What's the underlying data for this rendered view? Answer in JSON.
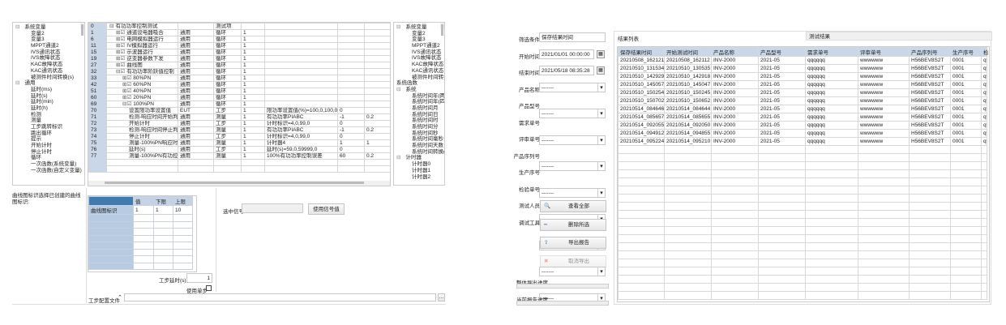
{
  "left_tree": {
    "items": [
      {
        "t": "系统变量",
        "l": 0,
        "exp": true
      },
      {
        "t": "变量2",
        "l": 1
      },
      {
        "t": "变量3",
        "l": 1
      },
      {
        "t": "MPPT通道2",
        "l": 1
      },
      {
        "t": "IVS通讯状态",
        "l": 1
      },
      {
        "t": "IVS故障状态",
        "l": 1
      },
      {
        "t": "KAC故障状态",
        "l": 1
      },
      {
        "t": "KAC通讯状态",
        "l": 1
      },
      {
        "t": "被测件时间转换(s)",
        "l": 1
      },
      {
        "t": "通用",
        "l": 0,
        "exp": true
      },
      {
        "t": "延时(ms)",
        "l": 1
      },
      {
        "t": "延时(s)",
        "l": 1
      },
      {
        "t": "延时(min)",
        "l": 1
      },
      {
        "t": "延时(h)",
        "l": 1
      },
      {
        "t": "检测",
        "l": 1
      },
      {
        "t": "测量",
        "l": 1
      },
      {
        "t": "工步跳转标识",
        "l": 1
      },
      {
        "t": "跳出循环",
        "l": 1
      },
      {
        "t": "提示",
        "l": 1
      },
      {
        "t": "开始计时",
        "l": 1
      },
      {
        "t": "停止计时",
        "l": 1
      },
      {
        "t": "循环",
        "l": 1
      },
      {
        "t": "一次函数(系统变量)",
        "l": 1
      },
      {
        "t": "一次函数(自定义变量)",
        "l": 1
      }
    ]
  },
  "main_table": {
    "rows": [
      [
        "0",
        "⊟",
        "有功功率控制测试",
        "",
        "测试项",
        "",
        "",
        "",
        "",
        0
      ],
      [
        "1",
        "⊞☑",
        "通道设电器吸合",
        "通用",
        "循环",
        "1",
        "",
        "",
        "",
        1
      ],
      [
        "6",
        "⊞☑",
        "电网模拟器运行",
        "通用",
        "循环",
        "1",
        "",
        "",
        "",
        1
      ],
      [
        "11",
        "⊞☑",
        "IV模拟器运行",
        "通用",
        "循环",
        "1",
        "",
        "",
        "",
        1
      ],
      [
        "15",
        "⊞☑",
        "示波器运行",
        "通用",
        "循环",
        "1",
        "",
        "",
        "",
        1
      ],
      [
        "19",
        "⊞☑",
        "逆变器参数下发",
        "通用",
        "循环",
        "1",
        "",
        "",
        "",
        1
      ],
      [
        "27",
        "⊞☑",
        "曲线图",
        "通用",
        "循环",
        "1",
        "",
        "",
        "",
        1
      ],
      [
        "32",
        "⊟☑",
        "有功功率阶跃值控制",
        "通用",
        "循环",
        "1",
        "",
        "",
        "",
        1
      ],
      [
        "33",
        "⊞☑",
        "80%PN",
        "通用",
        "循环",
        "1",
        "",
        "",
        "",
        2
      ],
      [
        "42",
        "⊞☑",
        "60%PN",
        "通用",
        "循环",
        "1",
        "",
        "",
        "",
        2
      ],
      [
        "51",
        "⊞☑",
        "40%PN",
        "通用",
        "循环",
        "1",
        "",
        "",
        "",
        2
      ],
      [
        "60",
        "⊞☑",
        "20%PN",
        "通用",
        "循环",
        "1",
        "",
        "",
        "",
        2
      ],
      [
        "69",
        "⊟☑",
        "100%PN",
        "通用",
        "循环",
        "1",
        "",
        "",
        "",
        2
      ],
      [
        "70",
        "",
        "设置限功率设置值",
        "EUT",
        "工步",
        "1",
        "限功率设置值(%)=100,0,100,0",
        "0",
        "",
        3
      ],
      [
        "71",
        "",
        "检测-响应时间开始判",
        "通用",
        "测量",
        "1",
        "有功功率PIABC",
        "-1",
        "0.2",
        3
      ],
      [
        "72",
        "",
        "开始计时",
        "通用",
        "工步",
        "1",
        "计时标识=4,0,99,0",
        "0",
        "",
        3
      ],
      [
        "73",
        "",
        "检测-响应时间停止判",
        "通用",
        "测量",
        "1",
        "有功功率PIABC",
        "-1",
        "0.2",
        3
      ],
      [
        "74",
        "",
        "停止计时",
        "通用",
        "工步",
        "1",
        "计时标识=4,0,99,0",
        "0",
        "",
        3
      ],
      [
        "75",
        "",
        "测量-100%PN响应时",
        "通用",
        "测量",
        "1",
        "计时器4",
        "1",
        "1",
        3
      ],
      [
        "76",
        "",
        "延时(s)",
        "通用",
        "工步",
        "1",
        "延时(s)=59,0,59999,0",
        "0",
        "",
        3
      ],
      [
        "77",
        "",
        "测量-100%PN有功控",
        "通用",
        "测量",
        "1",
        "100%有功功率控制误差",
        "60",
        "0.2",
        3
      ]
    ]
  },
  "right_tree": {
    "items": [
      {
        "t": "系统变量",
        "l": 0,
        "exp": true
      },
      {
        "t": "变量2",
        "l": 1
      },
      {
        "t": "变量3",
        "l": 1
      },
      {
        "t": "MPPT通道2",
        "l": 1
      },
      {
        "t": "IVS通讯状态",
        "l": 1
      },
      {
        "t": "IVS故障状态",
        "l": 1
      },
      {
        "t": "KAC故障状态",
        "l": 1
      },
      {
        "t": "KAC通讯状态",
        "l": 1
      },
      {
        "t": "被测件时间转换(s)",
        "l": 1
      },
      {
        "t": "系统函数",
        "l": 0
      },
      {
        "t": "系统",
        "l": 0,
        "exp": true
      },
      {
        "t": "系统时间年(两位)",
        "l": 1
      },
      {
        "t": "系统时间年(四位)",
        "l": 1
      },
      {
        "t": "系统时间月",
        "l": 1
      },
      {
        "t": "系统时间日",
        "l": 1
      },
      {
        "t": "系统时间时",
        "l": 1
      },
      {
        "t": "系统时间分",
        "l": 1
      },
      {
        "t": "系统时间秒",
        "l": 1
      },
      {
        "t": "系统时间毫秒",
        "l": 1
      },
      {
        "t": "系统时间天数",
        "l": 1
      },
      {
        "t": "系统时间转换(s)",
        "l": 1
      },
      {
        "t": "计时器",
        "l": 0,
        "exp": true
      },
      {
        "t": "计时器0",
        "l": 1
      },
      {
        "t": "计时器1",
        "l": 1
      },
      {
        "t": "计时器2",
        "l": 1
      }
    ]
  },
  "bottom": {
    "hint": "曲线图标识选择已创建的曲线图标识:",
    "grid_headers": [
      "值",
      "下限",
      "上限"
    ],
    "grid_row": [
      "曲线图标识",
      "1",
      "1",
      "10"
    ],
    "step_delay_label": "工步延时(s)",
    "step_delay_value": "1",
    "single_step_label": "使用单步",
    "single_step_checked": false,
    "selected_signal_label": "选中信号",
    "selected_signal_value": "",
    "use_signal_button": "使用信号值",
    "step_file_label": "工步配置文件",
    "step_file_value": "",
    "browse_button": "..."
  },
  "filter": {
    "fields": [
      {
        "label": "筛选条件",
        "value": "保存结果时间",
        "type": "text"
      },
      {
        "label": "开始时间",
        "value": "2021/01/01 00:00:00",
        "type": "date"
      },
      {
        "label": "结束时间",
        "value": "2021/05/18 08:35:28",
        "type": "date"
      },
      {
        "label": "产品名称",
        "value": "-------",
        "type": "select"
      },
      {
        "label": "产品型号",
        "value": "-------",
        "type": "select"
      },
      {
        "label": "需求单号",
        "value": "-------",
        "type": "select"
      },
      {
        "label": "评审单号",
        "value": "-------",
        "type": "select"
      },
      {
        "label": "产品序列号",
        "value": "-------",
        "type": "select"
      },
      {
        "label": "生产序号",
        "value": "-------",
        "type": "select"
      },
      {
        "label": "检验单号",
        "value": "-------",
        "type": "select"
      },
      {
        "label": "测试人员",
        "value": "-------",
        "type": "select"
      },
      {
        "label": "调试工具",
        "value": "-------",
        "type": "select"
      }
    ],
    "buttons": [
      {
        "label": "查看全部",
        "icon": "search-icon"
      },
      {
        "label": "删除所选",
        "icon": "minus-icon"
      },
      {
        "label": "导出报告",
        "icon": "export-icon"
      },
      {
        "label": "取消导出",
        "icon": "cancel-icon",
        "disabled": true
      }
    ],
    "overall_progress_label": "整体导出进度",
    "overall_progress": 0,
    "current_progress_label": "当前报告进度",
    "current_progress": 0
  },
  "results": {
    "tabs": [
      "结果列表",
      "测试结果"
    ],
    "headers": [
      "保存结果时间",
      "开始测试时间",
      "产品名称",
      "产品型号",
      "需求单号",
      "评审单号",
      "产品序列号",
      "生产序号",
      "检验"
    ],
    "rows": [
      [
        "20210508_162121",
        "20210508_162112",
        "INV-2000",
        "2021-05",
        "qqqqqq",
        "wwwwww",
        "H56BEV8S2T",
        "0001",
        "qwe"
      ],
      [
        "20210510_131534",
        "20210510_130535",
        "INV-2000",
        "2021-05",
        "qqqqqq",
        "wwwwww",
        "H56BEV8S2T",
        "0001",
        "qwe"
      ],
      [
        "20210510_142929",
        "20210510_142918",
        "INV-2000",
        "2021-05",
        "qqqqqq",
        "wwwwww",
        "H56BEV8S2T",
        "0001",
        "qwe"
      ],
      [
        "20210510_145057",
        "20210510_145047",
        "INV-2000",
        "2021-05",
        "qqqqqq",
        "wwwwww",
        "H56BEV8S2T",
        "0001",
        "qwe"
      ],
      [
        "20210510_150254",
        "20210510_150245",
        "INV-2000",
        "2021-05",
        "qqqqqq",
        "wwwwww",
        "H56BEV8S2T",
        "0001",
        "qwe"
      ],
      [
        "20210510_150702",
        "20210510_150652",
        "INV-2000",
        "2021-05",
        "qqqqqq",
        "wwwwww",
        "H56BEV8S2T",
        "0001",
        "qwe"
      ],
      [
        "20210514_084646",
        "20210514_084644",
        "INV-2000",
        "2021-05",
        "qqqqqq",
        "wwwwww",
        "H56BEV8S2T",
        "0001",
        "qwe"
      ],
      [
        "20210514_085657",
        "20210514_085655",
        "INV-2000",
        "2021-05",
        "qqqqqq",
        "wwwwww",
        "H56BEV8S2T",
        "0001",
        "qwe"
      ],
      [
        "20210514_092055",
        "20210514_092050",
        "INV-2000",
        "2021-05",
        "qqqqqq",
        "wwwwww",
        "H56BEV8S2T",
        "0001",
        "qwe"
      ],
      [
        "20210514_094912",
        "20210514_094855",
        "INV-2000",
        "2021-05",
        "qqqqqq",
        "wwwwww",
        "H56BEV8S2T",
        "0001",
        "qwe"
      ],
      [
        "20210514_095224",
        "20210514_095210",
        "INV-2000",
        "2021-05",
        "qqqqqq",
        "wwwwww",
        "H56BEV8S2T",
        "0001",
        "qwe"
      ]
    ]
  }
}
